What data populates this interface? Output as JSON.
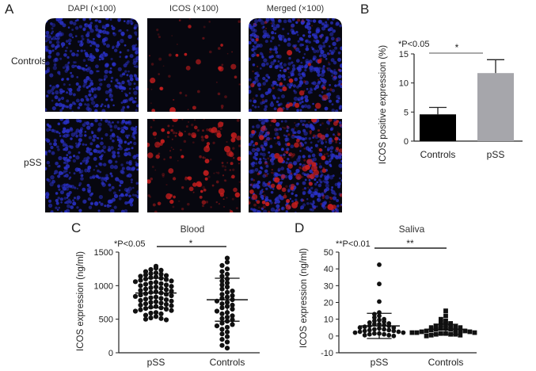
{
  "panel_letters": {
    "a": "A",
    "b": "B",
    "c": "C",
    "d": "D"
  },
  "panel_a": {
    "columns": [
      "DAPI (×100)",
      "ICOS (×100)",
      "Merged (×100)"
    ],
    "rows": [
      "Controls",
      "pSS"
    ],
    "images": [
      [
        "dapi-controls",
        "icos-controls",
        "merged-controls"
      ],
      [
        "dapi-pss",
        "icos-pss",
        "merged-pss"
      ]
    ]
  },
  "colors": {
    "controls_bar": "#000000",
    "pss_bar": "#a6a6ab",
    "dapi": "#2a31c8",
    "icos": "#c81e1e",
    "axis": "#222222"
  },
  "chart_data": [
    {
      "id": "B",
      "type": "bar",
      "categories": [
        "Controls",
        "pSS"
      ],
      "values": [
        4.6,
        11.7
      ],
      "errors": [
        1.2,
        2.3
      ],
      "ylabel": "ICOS positive expression (%)",
      "ylim": [
        0,
        15
      ],
      "yticks": [
        0,
        5,
        10,
        15
      ],
      "annotation": "*P<0.05",
      "significance": "*"
    },
    {
      "id": "C",
      "type": "scatter",
      "title": "Blood",
      "categories": [
        "pSS",
        "Controls"
      ],
      "ylabel": "ICOS expression (ng/ml)",
      "ylim": [
        0,
        1500
      ],
      "yticks": [
        0,
        500,
        1000,
        1500
      ],
      "annotation": "*P<0.05",
      "significance": "*",
      "summary": [
        {
          "group": "pSS",
          "mean": 890,
          "sd": 220
        },
        {
          "group": "Controls",
          "mean": 790,
          "sd": 320
        }
      ],
      "series": [
        {
          "name": "pSS",
          "values": [
            1290,
            1260,
            1240,
            1230,
            1210,
            1190,
            1180,
            1170,
            1160,
            1150,
            1140,
            1130,
            1120,
            1110,
            1100,
            1090,
            1080,
            1070,
            1060,
            1050,
            1040,
            1030,
            1020,
            1010,
            1000,
            990,
            980,
            970,
            960,
            950,
            940,
            930,
            920,
            910,
            900,
            890,
            880,
            870,
            860,
            850,
            840,
            830,
            820,
            810,
            800,
            790,
            780,
            770,
            760,
            750,
            740,
            730,
            720,
            710,
            700,
            690,
            680,
            670,
            660,
            650,
            640,
            630,
            620,
            600,
            590,
            580,
            560,
            540,
            520,
            510,
            500,
            490
          ]
        },
        {
          "name": "Controls",
          "values": [
            1410,
            1350,
            1300,
            1250,
            1210,
            1170,
            1140,
            1100,
            1070,
            1040,
            1010,
            980,
            950,
            920,
            900,
            870,
            850,
            830,
            810,
            790,
            770,
            750,
            730,
            710,
            690,
            670,
            650,
            620,
            600,
            580,
            550,
            530,
            510,
            490,
            470,
            440,
            420,
            400,
            380,
            350,
            310,
            280,
            240,
            200,
            160,
            110,
            70
          ]
        }
      ]
    },
    {
      "id": "D",
      "type": "scatter",
      "title": "Saliva",
      "categories": [
        "pSS",
        "Controls"
      ],
      "ylabel": "ICOS expression (ng/ml)",
      "ylim": [
        -10,
        50
      ],
      "yticks": [
        -10,
        0,
        10,
        20,
        30,
        40,
        50
      ],
      "annotation": "**P<0.01",
      "significance": "**",
      "summary": [
        {
          "group": "pSS",
          "mean": 6,
          "sd": 7.5
        },
        {
          "group": "Controls",
          "mean": 4,
          "sd": 3
        }
      ],
      "series": [
        {
          "name": "pSS",
          "values": [
            42.5,
            31,
            20.5,
            14,
            13,
            12,
            11,
            10,
            9.5,
            9,
            8.5,
            8,
            7.5,
            7,
            7,
            6.5,
            6,
            6,
            5.5,
            5,
            5,
            4.5,
            4,
            4,
            3.5,
            3.5,
            3,
            3,
            2.5,
            2.5,
            2,
            2,
            1.5,
            1.5,
            1,
            1,
            0.5,
            0.5,
            0
          ]
        },
        {
          "name": "Controls",
          "values": [
            15,
            12,
            10,
            9,
            8,
            7.5,
            7,
            6.5,
            6,
            6,
            5.5,
            5,
            5,
            4.5,
            4.5,
            4,
            4,
            3.5,
            3.5,
            3,
            3,
            3,
            2.5,
            2.5,
            2,
            2,
            2,
            1.5,
            1.5,
            1,
            1,
            1,
            0.5,
            0.5,
            0
          ]
        }
      ]
    }
  ]
}
